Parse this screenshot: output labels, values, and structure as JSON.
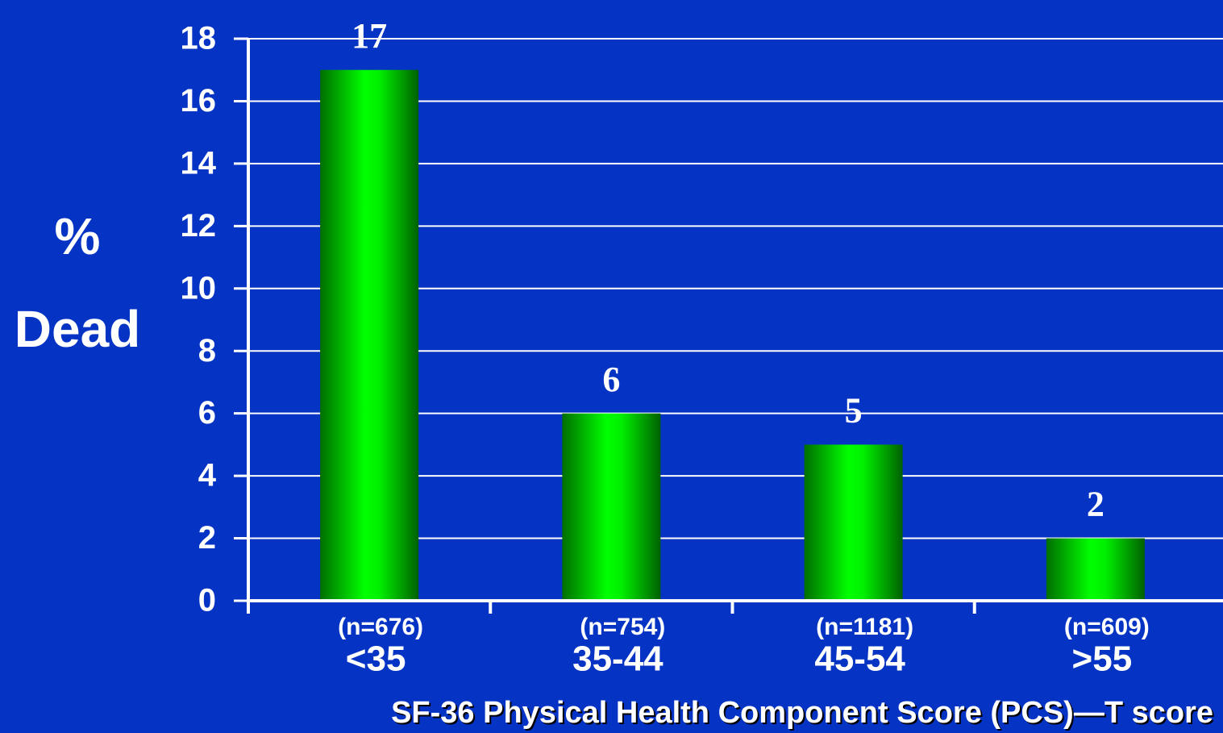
{
  "chart_data": {
    "type": "bar",
    "xlabel": "SF-36 Physical Health Component Score (PCS)—T score",
    "ylabel": [
      "%",
      "Dead"
    ],
    "categories": [
      "<35",
      "35-44",
      "45-54",
      ">55"
    ],
    "sample_sizes": [
      "(n=676)",
      "(n=754)",
      "(n=1181)",
      "(n=609)"
    ],
    "values": [
      17,
      6,
      5,
      2
    ],
    "color": "#00ff00",
    "ylim": [
      0,
      18
    ],
    "yticks": [
      0,
      2,
      4,
      6,
      8,
      10,
      12,
      14,
      16,
      18
    ],
    "grid": true
  }
}
